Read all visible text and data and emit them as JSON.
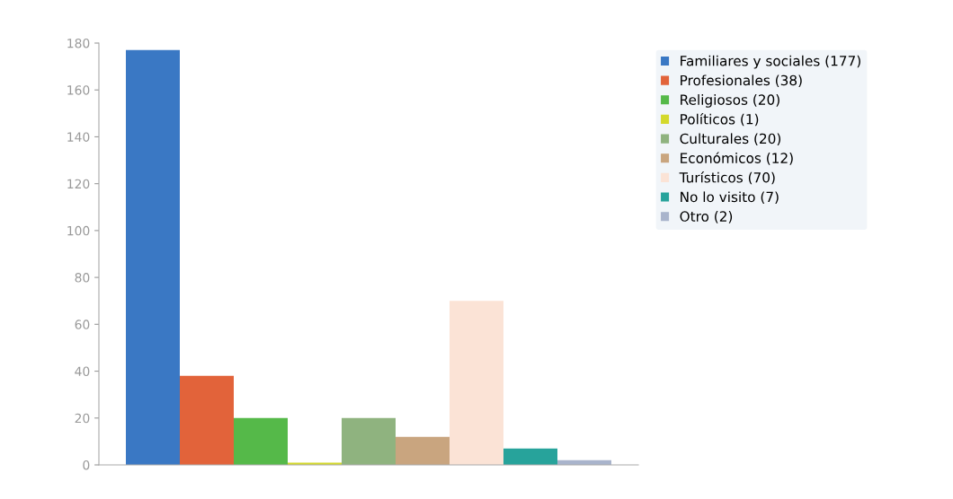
{
  "chart_data": {
    "type": "bar",
    "categories": [
      null
    ],
    "series": [
      {
        "name": "Familiares y sociales (177)",
        "color": "#3a78c4",
        "values": [
          177
        ]
      },
      {
        "name": "Profesionales (38)",
        "color": "#e2633a",
        "values": [
          38
        ]
      },
      {
        "name": "Religiosos (20)",
        "color": "#55b949",
        "values": [
          20
        ]
      },
      {
        "name": "Políticos (1)",
        "color": "#d4d92c",
        "values": [
          1
        ]
      },
      {
        "name": "Culturales (20)",
        "color": "#8fb37f",
        "values": [
          20
        ]
      },
      {
        "name": "Económicos (12)",
        "color": "#c9a57f",
        "values": [
          12
        ]
      },
      {
        "name": "Turísticos (70)",
        "color": "#fbe3d6",
        "values": [
          70
        ]
      },
      {
        "name": "No lo visito (7)",
        "color": "#27a39b",
        "values": [
          7
        ]
      },
      {
        "name": "Otro (2)",
        "color": "#a9b4cc",
        "values": [
          2
        ]
      }
    ],
    "ylim": [
      0,
      180
    ],
    "yticks": [
      0,
      20,
      40,
      60,
      80,
      100,
      120,
      140,
      160,
      180
    ],
    "grid": false,
    "legend": "top right"
  }
}
